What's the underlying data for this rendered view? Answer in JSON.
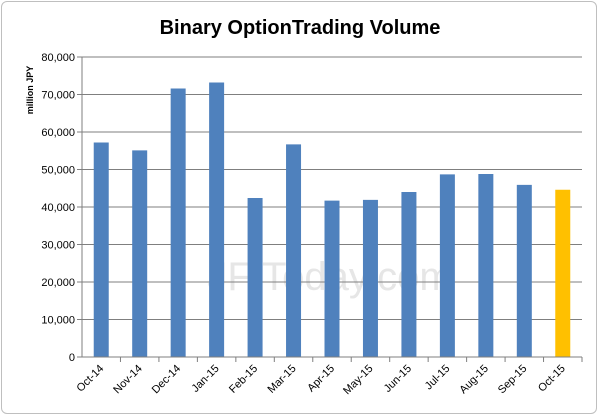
{
  "chart_data": {
    "type": "bar",
    "title": "Binary OptionTrading Volume",
    "ylabel": "million JPY",
    "xlabel": "",
    "categories": [
      "Oct-14",
      "Nov-14",
      "Dec-14",
      "Jan-15",
      "Feb-15",
      "Mar-15",
      "Apr-15",
      "May-15",
      "Jun-15",
      "Jul-15",
      "Aug-15",
      "Sep-15",
      "Oct-15"
    ],
    "series": [
      {
        "values": [
          57200,
          55100,
          71600,
          73200,
          42400,
          56700,
          41700,
          41900,
          44000,
          48700,
          48800,
          45900,
          44600
        ]
      }
    ],
    "highlight_index": 12,
    "colors": {
      "bar": "#4f81bd",
      "highlight": "#ffc000",
      "grid": "#7f7f7f"
    },
    "ylim": [
      0,
      80000
    ],
    "yticks": [
      "0",
      "10,000",
      "20,000",
      "30,000",
      "40,000",
      "50,000",
      "60,000",
      "70,000",
      "80,000"
    ],
    "grid": true,
    "legend": "none",
    "watermark": "JF Today.com"
  }
}
